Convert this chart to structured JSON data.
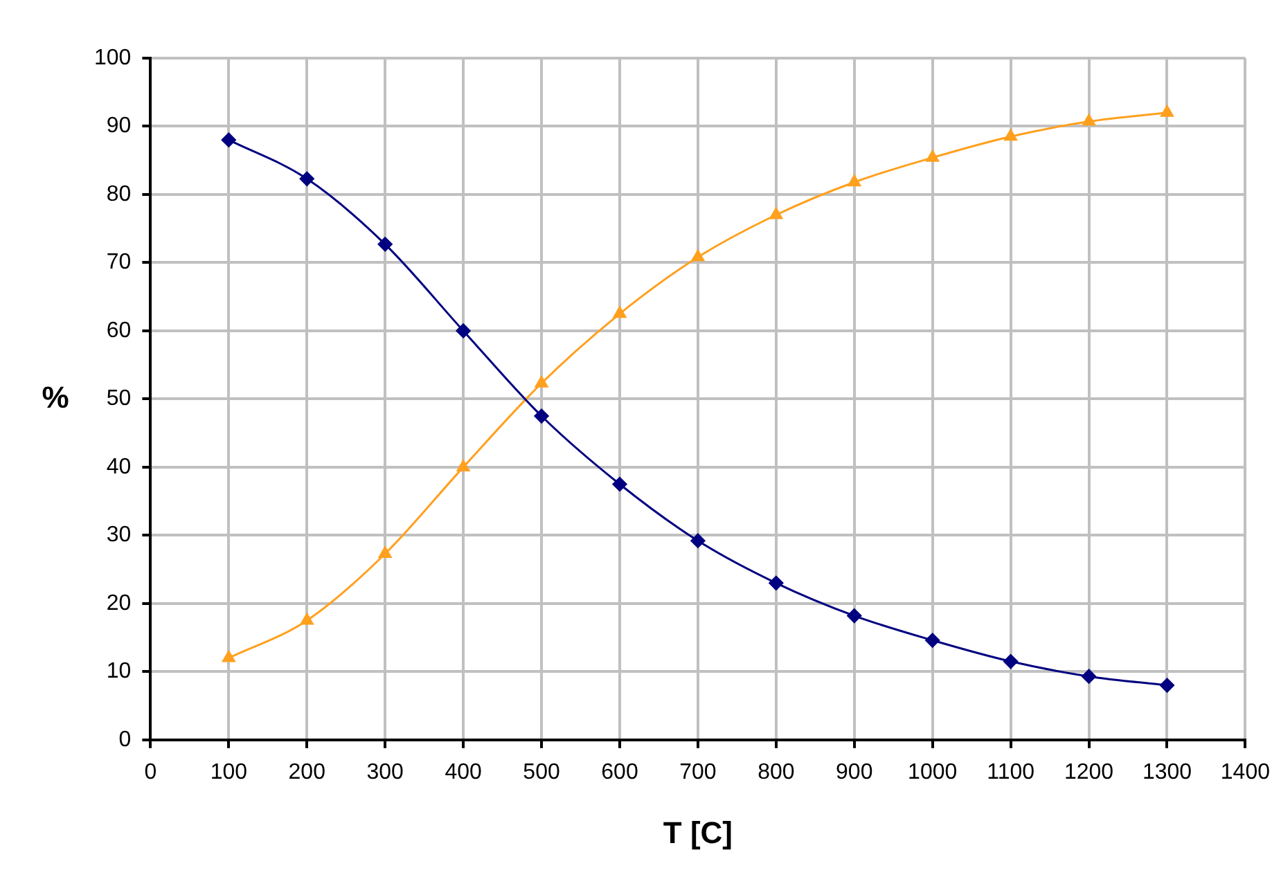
{
  "chart_data": {
    "type": "line",
    "xlabel": "T [C]",
    "ylabel": "%",
    "x": [
      100,
      200,
      300,
      400,
      500,
      600,
      700,
      800,
      900,
      1000,
      1100,
      1200,
      1300
    ],
    "series": [
      {
        "color": "#000080",
        "marker": "diamond",
        "values": [
          88,
          82.3,
          72.7,
          60,
          47.5,
          37.5,
          29.2,
          23,
          18.2,
          14.6,
          11.5,
          9.3,
          8
        ]
      },
      {
        "color": "#ffa01e",
        "marker": "triangle",
        "values": [
          12,
          17.5,
          27.3,
          40,
          52.3,
          62.5,
          70.8,
          77,
          81.8,
          85.4,
          88.5,
          90.7,
          92
        ]
      }
    ],
    "xlim": [
      0,
      1400
    ],
    "xticks": [
      0,
      100,
      200,
      300,
      400,
      500,
      600,
      700,
      800,
      900,
      1000,
      1100,
      1200,
      1300,
      1400
    ],
    "ylim": [
      0,
      100
    ],
    "yticks": [
      0,
      10,
      20,
      30,
      40,
      50,
      60,
      70,
      80,
      90,
      100
    ],
    "grid": true,
    "legend": false,
    "line_style": "solid"
  }
}
